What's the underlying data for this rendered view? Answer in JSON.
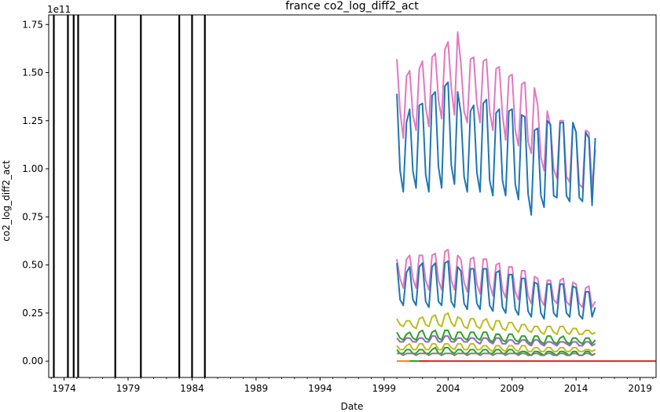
{
  "chart_data": {
    "type": "line",
    "title": "france co2_log_diff2_act",
    "xlabel": "Date",
    "ylabel": "co2_log_diff2_act",
    "y_offset_label": "1e11",
    "xlim": [
      1972.8,
      2020.25
    ],
    "ylim": [
      -0.085,
      1.8
    ],
    "x_ticks": [
      1974,
      1979,
      1984,
      1989,
      1994,
      1999,
      2004,
      2009,
      2014,
      2019
    ],
    "y_ticks": [
      0.0,
      0.25,
      0.5,
      0.75,
      1.0,
      1.25,
      1.5,
      1.75
    ],
    "y_tick_labels": [
      "0.00",
      "0.25",
      "0.50",
      "0.75",
      "1.00",
      "1.25",
      "1.50",
      "1.75"
    ],
    "grid": false,
    "vertical_lines": {
      "color": "#000000",
      "dates": [
        1973.2,
        1974.3,
        1974.75,
        1975.1,
        1978.0,
        1980.0,
        1983.0,
        1984.0,
        1985.0
      ]
    },
    "series": [
      {
        "color": "#e377c2",
        "start": 2000.0,
        "step": 0.25,
        "values": [
          1.57,
          1.3,
          1.16,
          1.48,
          1.51,
          1.28,
          1.2,
          1.52,
          1.56,
          1.32,
          1.22,
          1.58,
          1.6,
          1.36,
          1.26,
          1.62,
          1.66,
          1.42,
          1.28,
          1.71,
          1.55,
          1.3,
          1.24,
          1.57,
          1.58,
          1.34,
          1.24,
          1.56,
          1.57,
          1.3,
          1.2,
          1.52,
          1.53,
          1.28,
          1.15,
          1.48,
          1.49,
          1.2,
          1.12,
          1.44,
          1.45,
          1.14,
          1.08,
          1.42,
          1.33,
          1.06,
          0.99,
          1.3,
          1.22,
          1.0,
          0.95,
          1.25,
          1.25,
          0.96,
          0.93,
          1.24,
          1.19,
          0.92,
          0.9,
          1.2,
          1.19,
          0.9,
          1.1
        ]
      },
      {
        "color": "#1f77b4",
        "start": 2000.0,
        "step": 0.25,
        "values": [
          1.39,
          0.99,
          0.88,
          1.24,
          1.31,
          0.99,
          0.9,
          1.33,
          1.34,
          0.97,
          0.88,
          1.38,
          1.4,
          1.01,
          0.9,
          1.43,
          1.45,
          1.02,
          0.92,
          1.4,
          1.29,
          0.96,
          0.88,
          1.3,
          1.33,
          0.98,
          0.88,
          1.34,
          1.36,
          0.94,
          0.86,
          1.29,
          1.31,
          0.94,
          0.86,
          1.3,
          1.31,
          0.92,
          0.84,
          1.28,
          1.27,
          0.87,
          0.76,
          1.2,
          1.21,
          0.86,
          0.8,
          1.25,
          1.23,
          0.86,
          0.85,
          1.24,
          1.24,
          0.86,
          0.83,
          1.24,
          1.19,
          0.85,
          0.83,
          1.19,
          1.16,
          0.81,
          1.16
        ]
      },
      {
        "color": "#e377c2",
        "start": 2000.0,
        "step": 0.25,
        "values": [
          0.53,
          0.43,
          0.38,
          0.53,
          0.55,
          0.43,
          0.38,
          0.55,
          0.55,
          0.42,
          0.37,
          0.55,
          0.56,
          0.42,
          0.37,
          0.57,
          0.58,
          0.42,
          0.37,
          0.55,
          0.53,
          0.41,
          0.36,
          0.53,
          0.54,
          0.4,
          0.35,
          0.53,
          0.53,
          0.4,
          0.34,
          0.5,
          0.51,
          0.37,
          0.33,
          0.49,
          0.49,
          0.36,
          0.32,
          0.47,
          0.47,
          0.34,
          0.3,
          0.44,
          0.43,
          0.32,
          0.29,
          0.42,
          0.42,
          0.32,
          0.3,
          0.42,
          0.43,
          0.31,
          0.29,
          0.41,
          0.4,
          0.3,
          0.28,
          0.38,
          0.39,
          0.28,
          0.31
        ]
      },
      {
        "color": "#1f77b4",
        "start": 2000.0,
        "step": 0.25,
        "values": [
          0.51,
          0.32,
          0.29,
          0.46,
          0.49,
          0.32,
          0.29,
          0.49,
          0.51,
          0.31,
          0.28,
          0.49,
          0.51,
          0.31,
          0.29,
          0.51,
          0.52,
          0.31,
          0.28,
          0.49,
          0.47,
          0.3,
          0.27,
          0.48,
          0.48,
          0.3,
          0.27,
          0.48,
          0.48,
          0.29,
          0.26,
          0.46,
          0.47,
          0.28,
          0.25,
          0.45,
          0.45,
          0.27,
          0.24,
          0.43,
          0.43,
          0.26,
          0.23,
          0.41,
          0.4,
          0.25,
          0.22,
          0.4,
          0.4,
          0.25,
          0.23,
          0.4,
          0.4,
          0.25,
          0.23,
          0.39,
          0.38,
          0.24,
          0.22,
          0.36,
          0.36,
          0.23,
          0.28
        ]
      },
      {
        "color": "#bcbd22",
        "start": 2000.0,
        "step": 0.25,
        "values": [
          0.22,
          0.19,
          0.18,
          0.21,
          0.21,
          0.18,
          0.17,
          0.22,
          0.23,
          0.19,
          0.18,
          0.23,
          0.24,
          0.19,
          0.18,
          0.24,
          0.25,
          0.2,
          0.18,
          0.23,
          0.22,
          0.18,
          0.17,
          0.22,
          0.22,
          0.18,
          0.17,
          0.21,
          0.22,
          0.18,
          0.16,
          0.21,
          0.21,
          0.17,
          0.16,
          0.2,
          0.2,
          0.17,
          0.15,
          0.19,
          0.19,
          0.16,
          0.15,
          0.18,
          0.18,
          0.15,
          0.14,
          0.18,
          0.18,
          0.15,
          0.14,
          0.18,
          0.18,
          0.15,
          0.14,
          0.17,
          0.17,
          0.14,
          0.14,
          0.16,
          0.16,
          0.14,
          0.15
        ]
      },
      {
        "color": "#2ca02c",
        "start": 2000.0,
        "step": 0.25,
        "values": [
          0.15,
          0.12,
          0.11,
          0.14,
          0.15,
          0.12,
          0.11,
          0.15,
          0.16,
          0.12,
          0.11,
          0.15,
          0.16,
          0.12,
          0.11,
          0.16,
          0.16,
          0.12,
          0.11,
          0.15,
          0.15,
          0.12,
          0.11,
          0.15,
          0.15,
          0.12,
          0.11,
          0.15,
          0.15,
          0.11,
          0.1,
          0.14,
          0.14,
          0.11,
          0.1,
          0.14,
          0.14,
          0.11,
          0.1,
          0.13,
          0.13,
          0.1,
          0.09,
          0.13,
          0.13,
          0.1,
          0.09,
          0.13,
          0.13,
          0.1,
          0.09,
          0.12,
          0.13,
          0.1,
          0.09,
          0.12,
          0.12,
          0.1,
          0.09,
          0.12,
          0.12,
          0.09,
          0.11
        ]
      },
      {
        "color": "#9467bd",
        "start": 2000.0,
        "step": 0.25,
        "values": [
          0.12,
          0.1,
          0.1,
          0.12,
          0.12,
          0.1,
          0.1,
          0.12,
          0.12,
          0.1,
          0.1,
          0.13,
          0.13,
          0.1,
          0.1,
          0.13,
          0.13,
          0.1,
          0.1,
          0.12,
          0.12,
          0.1,
          0.1,
          0.12,
          0.12,
          0.1,
          0.09,
          0.12,
          0.12,
          0.1,
          0.09,
          0.12,
          0.12,
          0.09,
          0.09,
          0.11,
          0.11,
          0.09,
          0.09,
          0.11,
          0.11,
          0.09,
          0.08,
          0.11,
          0.11,
          0.09,
          0.08,
          0.1,
          0.1,
          0.09,
          0.08,
          0.1,
          0.1,
          0.09,
          0.08,
          0.1,
          0.1,
          0.08,
          0.08,
          0.1,
          0.1,
          0.08,
          0.09
        ]
      },
      {
        "color": "#bcbd22",
        "start": 2000.0,
        "step": 0.25,
        "values": [
          0.08,
          0.06,
          0.06,
          0.08,
          0.09,
          0.06,
          0.06,
          0.09,
          0.09,
          0.06,
          0.06,
          0.09,
          0.09,
          0.06,
          0.06,
          0.09,
          0.09,
          0.07,
          0.06,
          0.09,
          0.09,
          0.06,
          0.06,
          0.09,
          0.09,
          0.06,
          0.06,
          0.08,
          0.08,
          0.06,
          0.05,
          0.08,
          0.08,
          0.06,
          0.05,
          0.08,
          0.08,
          0.06,
          0.05,
          0.08,
          0.08,
          0.05,
          0.05,
          0.07,
          0.07,
          0.05,
          0.05,
          0.07,
          0.07,
          0.05,
          0.05,
          0.07,
          0.07,
          0.05,
          0.05,
          0.07,
          0.07,
          0.05,
          0.05,
          0.06,
          0.06,
          0.05,
          0.06
        ]
      },
      {
        "color": "#2ca02c",
        "start": 2000.0,
        "step": 0.25,
        "values": [
          0.06,
          0.04,
          0.04,
          0.06,
          0.06,
          0.04,
          0.04,
          0.06,
          0.06,
          0.04,
          0.04,
          0.06,
          0.07,
          0.04,
          0.04,
          0.07,
          0.07,
          0.05,
          0.04,
          0.06,
          0.06,
          0.04,
          0.04,
          0.06,
          0.06,
          0.04,
          0.04,
          0.06,
          0.06,
          0.04,
          0.04,
          0.06,
          0.06,
          0.04,
          0.04,
          0.06,
          0.06,
          0.04,
          0.04,
          0.05,
          0.05,
          0.04,
          0.03,
          0.05,
          0.05,
          0.04,
          0.03,
          0.05,
          0.05,
          0.04,
          0.03,
          0.05,
          0.05,
          0.04,
          0.03,
          0.05,
          0.05,
          0.03,
          0.03,
          0.05,
          0.05,
          0.03,
          0.04
        ]
      },
      {
        "color": "#7f7f7f",
        "start": 2000.0,
        "step": 0.25,
        "values": [
          0.04,
          0.04,
          0.03,
          0.04,
          0.04,
          0.04,
          0.03,
          0.04,
          0.04,
          0.04,
          0.03,
          0.04,
          0.04,
          0.04,
          0.03,
          0.04,
          0.04,
          0.04,
          0.03,
          0.04,
          0.04,
          0.04,
          0.03,
          0.04,
          0.04,
          0.04,
          0.03,
          0.04,
          0.04,
          0.04,
          0.03,
          0.04,
          0.04,
          0.04,
          0.03,
          0.04,
          0.04,
          0.04,
          0.03,
          0.04,
          0.04,
          0.03,
          0.03,
          0.04,
          0.04,
          0.03,
          0.03,
          0.04,
          0.04,
          0.03,
          0.03,
          0.04,
          0.04,
          0.03,
          0.03,
          0.04,
          0.04,
          0.03,
          0.03,
          0.04,
          0.04,
          0.03,
          0.04
        ]
      },
      {
        "color": "#ff7f0e",
        "start": 2000.0,
        "step": 0.25,
        "values": [
          0.0,
          0.0,
          0.0,
          0.0,
          0.0,
          0.0,
          0.0
        ]
      },
      {
        "color": "#2ca02c",
        "start": 2001.0,
        "step": 0.25,
        "values": [
          0.0,
          0.0,
          0.0,
          0.0,
          0.0,
          0.0,
          0.0
        ]
      },
      {
        "color": "#d62728",
        "start": 2001.75,
        "step": 0.25,
        "values": [
          0.0,
          0.0,
          0.0,
          0.0,
          0.0,
          0.0,
          0.0,
          0.0,
          0.0,
          0.0,
          0.0,
          0.0,
          0.0,
          0.0,
          0.0,
          0.0,
          0.0,
          0.0,
          0.0,
          0.0,
          0.0,
          0.0,
          0.0,
          0.0,
          0.0,
          0.0,
          0.0,
          0.0,
          0.0,
          0.0,
          0.0,
          0.0,
          0.0,
          0.0,
          0.0,
          0.0,
          0.0,
          0.0,
          0.0,
          0.0,
          0.0,
          0.0,
          0.0,
          0.0,
          0.0,
          0.0,
          0.0,
          0.0,
          0.0,
          0.0,
          0.0,
          0.0,
          0.0,
          0.0,
          0.0,
          0.0,
          0.0,
          0.0,
          0.0,
          0.0,
          0.0,
          0.0,
          0.0,
          0.0,
          0.0,
          0.0,
          0.0,
          0.0,
          0.0,
          0.0,
          0.0,
          0.0,
          0.0,
          0.0,
          0.0,
          0.0
        ]
      }
    ]
  }
}
